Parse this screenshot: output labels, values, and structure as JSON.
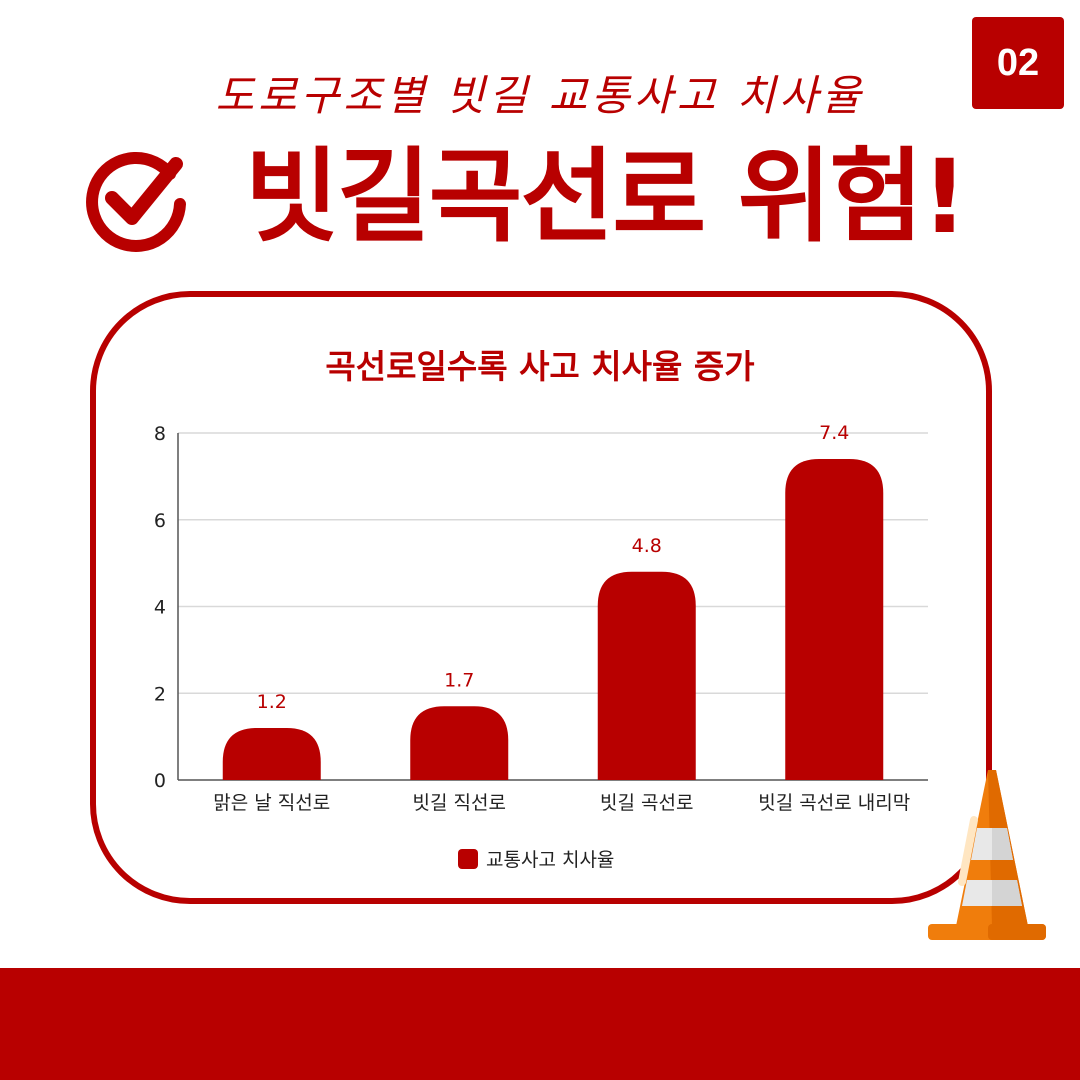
{
  "badge": {
    "number": "02"
  },
  "header": {
    "subtitle": "도로구조별 빗길 교통사고 치사율",
    "headline": "빗길곡선로 위험!"
  },
  "icons": {
    "check": "check-circle-icon",
    "cone": "traffic-cone-icon"
  },
  "colors": {
    "accent": "#b80000",
    "bar": "#b80000",
    "text": "#222222",
    "grid": "#d9d9d9"
  },
  "chart_data": {
    "type": "bar",
    "title": "곡선로일수록 사고 치사율 증가",
    "categories": [
      "맑은 날 직선로",
      "빗길 직선로",
      "빗길 곡선로",
      "빗길 곡선로 내리막"
    ],
    "series": [
      {
        "name": "교통사고 치사율",
        "values": [
          1.2,
          1.7,
          4.8,
          7.4
        ]
      }
    ],
    "data_labels": [
      "1.2",
      "1.7",
      "4.8",
      "7.4"
    ],
    "ylim": [
      0,
      8
    ],
    "yticks": [
      0,
      2,
      4,
      6,
      8
    ],
    "xlabel": "",
    "ylabel": "",
    "grid": true,
    "legend": "bottom"
  }
}
